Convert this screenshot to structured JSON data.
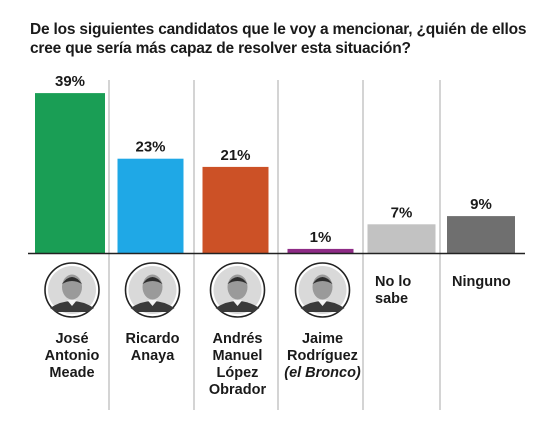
{
  "title": "De los siguientes candidatos que le voy a mencionar, ¿quién de ellos cree que sería más capaz de resolver esta situación?",
  "colors": {
    "meade": "#1a9e55",
    "anaya": "#1fa8e6",
    "lopez_obrador": "#cc5126",
    "rodriguez": "#8e2b86",
    "no_sabe": "#c2c2c2",
    "ninguno": "#6f6f6f",
    "divider": "#a9a9a9",
    "baseline": "#222222"
  },
  "chart_data": {
    "type": "bar",
    "categories": [
      [
        "José",
        "Antonio",
        "Meade"
      ],
      [
        "Ricardo",
        "Anaya"
      ],
      [
        "Andrés",
        "Manuel",
        "López",
        "Obrador"
      ],
      [
        "Jaime",
        "Rodríguez",
        "(el Bronco)"
      ],
      [
        "No lo",
        "sabe"
      ],
      [
        "Ninguno"
      ]
    ],
    "values": [
      39,
      23,
      21,
      1,
      7,
      9
    ],
    "value_labels": [
      "39%",
      "23%",
      "21%",
      "1%",
      "7%",
      "9%"
    ],
    "portraits": [
      "portrait-icon",
      "portrait-icon",
      "portrait-icon",
      "portrait-icon",
      null,
      null
    ],
    "ylim": [
      0,
      40
    ]
  }
}
